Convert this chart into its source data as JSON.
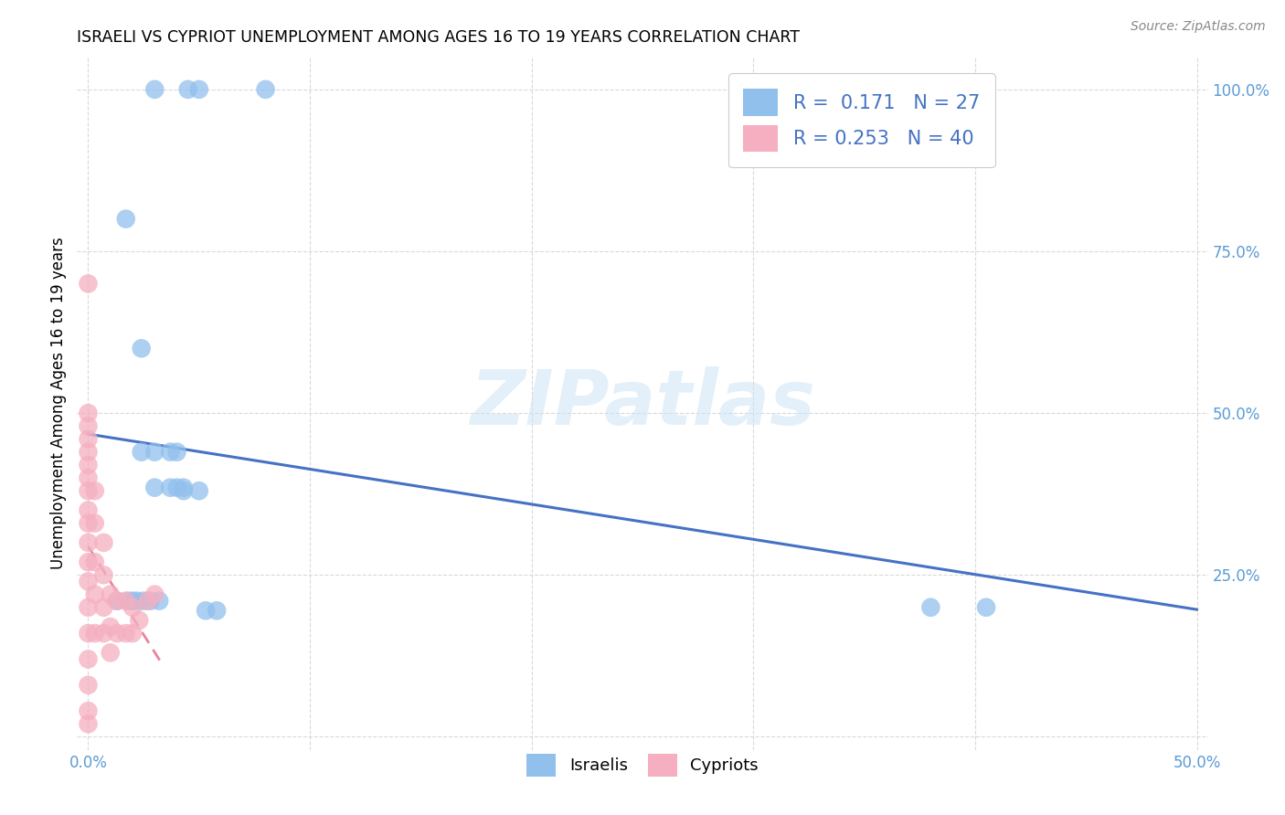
{
  "title": "ISRAELI VS CYPRIOT UNEMPLOYMENT AMONG AGES 16 TO 19 YEARS CORRELATION CHART",
  "source": "Source: ZipAtlas.com",
  "ylabel": "Unemployment Among Ages 16 to 19 years",
  "xlim": [
    -0.005,
    0.505
  ],
  "ylim": [
    -0.02,
    1.05
  ],
  "xticks": [
    0.0,
    0.1,
    0.2,
    0.3,
    0.4,
    0.5
  ],
  "yticks": [
    0.0,
    0.25,
    0.5,
    0.75,
    1.0
  ],
  "xticklabels": [
    "0.0%",
    "",
    "",
    "",
    "",
    "50.0%"
  ],
  "yticklabels": [
    "",
    "25.0%",
    "50.0%",
    "75.0%",
    "100.0%"
  ],
  "israeli_color": "#92c0ed",
  "cypriot_color": "#f5afc0",
  "israeli_R": 0.171,
  "israeli_N": 27,
  "cypriot_R": 0.253,
  "cypriot_N": 40,
  "legend_label_israeli": "Israelis",
  "legend_label_cypriot": "Cypriots",
  "watermark": "ZIPatlas",
  "israeli_x": [
    0.03,
    0.045,
    0.05,
    0.08,
    0.017,
    0.024,
    0.024,
    0.03,
    0.03,
    0.037,
    0.037,
    0.04,
    0.04,
    0.043,
    0.043,
    0.05,
    0.053,
    0.058,
    0.38,
    0.405,
    0.013,
    0.018,
    0.02,
    0.022,
    0.025,
    0.028,
    0.032
  ],
  "israeli_y": [
    1.0,
    1.0,
    1.0,
    1.0,
    0.8,
    0.6,
    0.44,
    0.44,
    0.385,
    0.385,
    0.44,
    0.44,
    0.385,
    0.38,
    0.385,
    0.38,
    0.195,
    0.195,
    0.2,
    0.2,
    0.21,
    0.21,
    0.21,
    0.21,
    0.21,
    0.21,
    0.21
  ],
  "cypriot_x": [
    0.0,
    0.0,
    0.0,
    0.0,
    0.0,
    0.0,
    0.0,
    0.0,
    0.0,
    0.0,
    0.0,
    0.0,
    0.0,
    0.0,
    0.0,
    0.0,
    0.0,
    0.0,
    0.0,
    0.003,
    0.003,
    0.003,
    0.003,
    0.003,
    0.007,
    0.007,
    0.007,
    0.007,
    0.01,
    0.01,
    0.01,
    0.013,
    0.013,
    0.017,
    0.017,
    0.02,
    0.02,
    0.023,
    0.027,
    0.03
  ],
  "cypriot_y": [
    0.7,
    0.5,
    0.48,
    0.46,
    0.44,
    0.42,
    0.4,
    0.38,
    0.35,
    0.33,
    0.3,
    0.27,
    0.24,
    0.2,
    0.16,
    0.12,
    0.08,
    0.04,
    0.02,
    0.38,
    0.33,
    0.27,
    0.22,
    0.16,
    0.3,
    0.25,
    0.2,
    0.16,
    0.22,
    0.17,
    0.13,
    0.21,
    0.16,
    0.21,
    0.16,
    0.2,
    0.16,
    0.18,
    0.21,
    0.22
  ]
}
